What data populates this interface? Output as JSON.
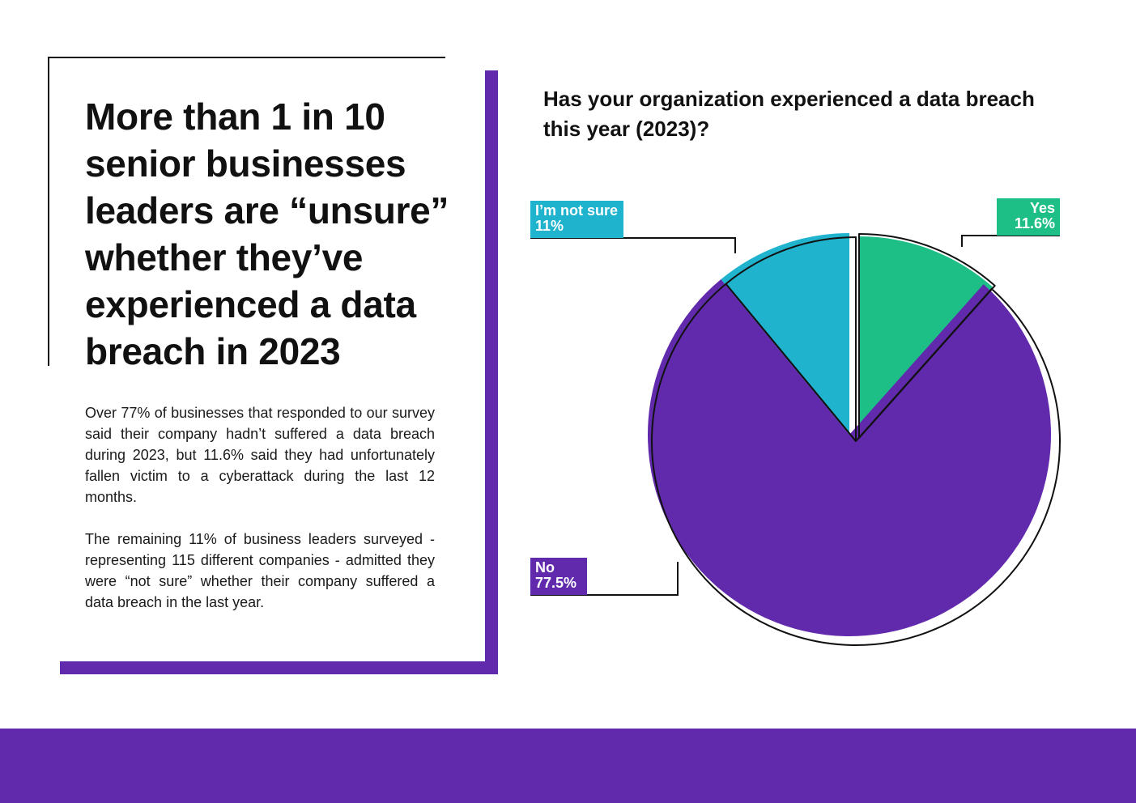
{
  "headline": "More than 1 in 10 senior businesses leaders are “unsure” whether they’ve experienced a data breach in 2023",
  "paragraphs": [
    "Over 77% of businesses that responded to our survey said their company hadn’t suffered a data breach during 2023, but 11.6% said they had unfortunately fallen victim to a cyberattack during the last 12 months.",
    "The remaining 11% of business leaders surveyed - representing 115 different companies - admitted they were “not sure” whether their company suffered a data breach in the last year."
  ],
  "chart_data": {
    "type": "pie",
    "title": "Has your organization experienced a data breach this year (2023)?",
    "slices": [
      {
        "name": "Yes",
        "value": 11.6,
        "label": "11.6%",
        "color": "#1dbf87",
        "exploded": true
      },
      {
        "name": "No",
        "value": 77.5,
        "label": "77.5%",
        "color": "#612aad",
        "exploded": false
      },
      {
        "name": "I’m not sure",
        "value": 11,
        "label": "11%",
        "color": "#1fb3cd",
        "exploded": false
      }
    ],
    "start": "top, clockwise"
  }
}
